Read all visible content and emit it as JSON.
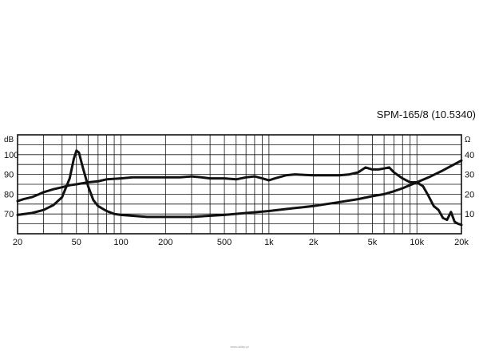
{
  "chart_data": {
    "type": "line",
    "title": "SPM-165/8 (10.5340)",
    "left_axis_unit": "dB",
    "right_axis_unit": "Ω",
    "x_scale": "log",
    "xlim": [
      20,
      20000
    ],
    "x_tick_values": [
      20,
      50,
      100,
      200,
      500,
      1000,
      2000,
      5000,
      10000,
      20000
    ],
    "x_tick_labels": [
      "20",
      "50",
      "100",
      "200",
      "500",
      "1k",
      "2k",
      "5k",
      "10k",
      "20k"
    ],
    "ylim_left": [
      60,
      110
    ],
    "y_left_ticks": [
      70,
      80,
      90,
      100
    ],
    "ylim_right": [
      0,
      50
    ],
    "y_right_ticks": [
      10,
      20,
      30,
      40
    ],
    "grid": true,
    "series": [
      {
        "axis": "left",
        "points": [
          [
            20,
            76.5
          ],
          [
            22,
            77.5
          ],
          [
            25,
            78.5
          ],
          [
            28,
            80
          ],
          [
            30,
            81
          ],
          [
            35,
            82.5
          ],
          [
            40,
            83.5
          ],
          [
            45,
            84.5
          ],
          [
            50,
            85
          ],
          [
            60,
            86
          ],
          [
            70,
            86.5
          ],
          [
            80,
            87.5
          ],
          [
            100,
            88
          ],
          [
            120,
            88.5
          ],
          [
            150,
            88.5
          ],
          [
            200,
            88.5
          ],
          [
            250,
            88.5
          ],
          [
            300,
            89
          ],
          [
            350,
            88.5
          ],
          [
            400,
            88
          ],
          [
            500,
            88
          ],
          [
            600,
            87.5
          ],
          [
            700,
            88.5
          ],
          [
            800,
            89
          ],
          [
            900,
            88
          ],
          [
            1000,
            87
          ],
          [
            1100,
            88
          ],
          [
            1300,
            89.5
          ],
          [
            1500,
            90
          ],
          [
            2000,
            89.5
          ],
          [
            2500,
            89.5
          ],
          [
            3000,
            89.5
          ],
          [
            3500,
            90
          ],
          [
            4000,
            91
          ],
          [
            4500,
            93.5
          ],
          [
            5000,
            92.5
          ],
          [
            5500,
            92.5
          ],
          [
            6000,
            93
          ],
          [
            6500,
            93.5
          ],
          [
            7000,
            91
          ],
          [
            8000,
            88
          ],
          [
            9000,
            86
          ],
          [
            10000,
            86
          ],
          [
            11000,
            84
          ],
          [
            12000,
            79
          ],
          [
            13000,
            74
          ],
          [
            14000,
            72
          ],
          [
            15000,
            68
          ],
          [
            16000,
            67
          ],
          [
            17000,
            71
          ],
          [
            18000,
            66
          ],
          [
            19000,
            65
          ],
          [
            20000,
            64.5
          ]
        ]
      },
      {
        "axis": "right",
        "points": [
          [
            20,
            9.5
          ],
          [
            25,
            10.5
          ],
          [
            30,
            12
          ],
          [
            35,
            14.5
          ],
          [
            40,
            18.5
          ],
          [
            45,
            28
          ],
          [
            48,
            38
          ],
          [
            50,
            42
          ],
          [
            52,
            41
          ],
          [
            55,
            34
          ],
          [
            60,
            24
          ],
          [
            65,
            17
          ],
          [
            70,
            14
          ],
          [
            80,
            11.5
          ],
          [
            90,
            10
          ],
          [
            100,
            9.5
          ],
          [
            150,
            8.5
          ],
          [
            200,
            8.5
          ],
          [
            300,
            8.5
          ],
          [
            500,
            9.5
          ],
          [
            700,
            10.5
          ],
          [
            1000,
            11.5
          ],
          [
            1500,
            13
          ],
          [
            2000,
            14
          ],
          [
            3000,
            16
          ],
          [
            4000,
            17.5
          ],
          [
            5000,
            19
          ],
          [
            6000,
            20
          ],
          [
            7000,
            21.5
          ],
          [
            8000,
            23
          ],
          [
            10000,
            26
          ],
          [
            12000,
            28.5
          ],
          [
            15000,
            32
          ],
          [
            20000,
            37
          ]
        ]
      }
    ]
  },
  "watermark": "www.sklep.pl"
}
